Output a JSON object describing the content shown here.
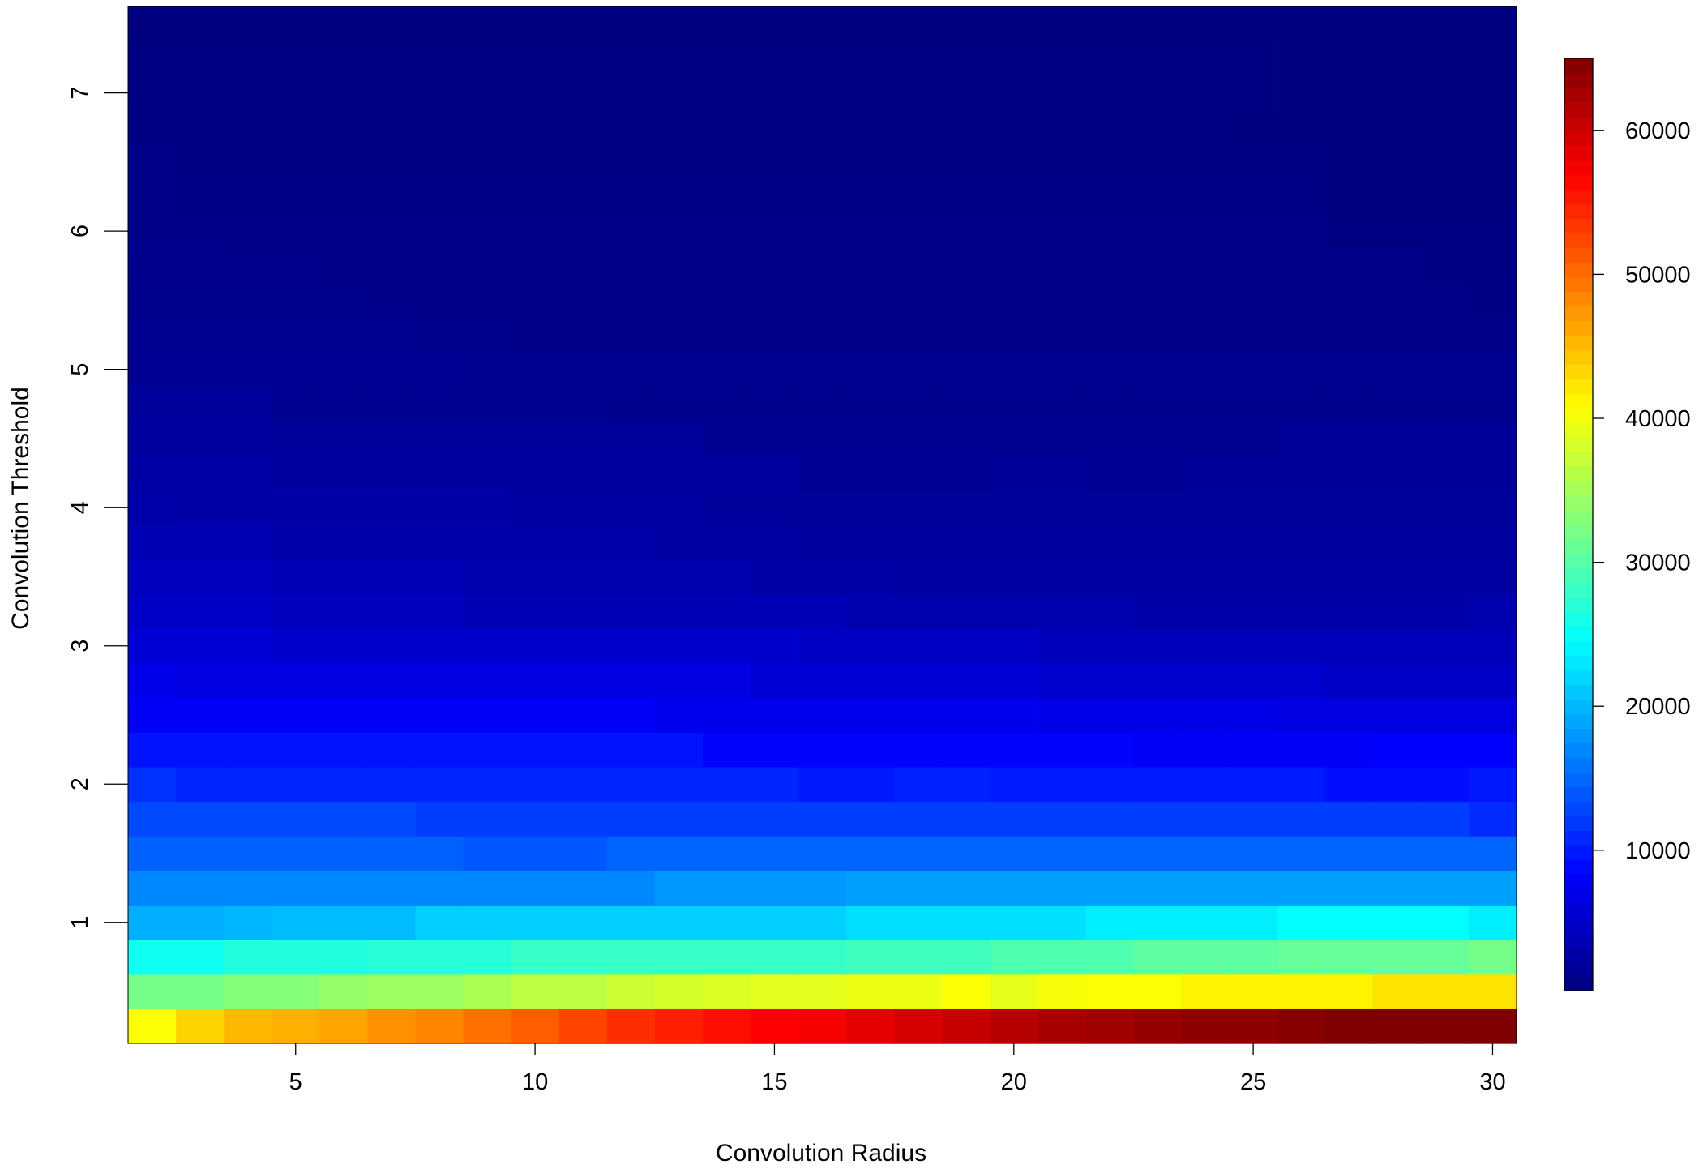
{
  "chart_data": {
    "type": "heatmap",
    "title": "",
    "xlabel": "Convolution Radius",
    "ylabel": "Convolution Threshold",
    "x_ticks": [
      5,
      10,
      15,
      20,
      25,
      30
    ],
    "y_ticks": [
      1,
      2,
      3,
      4,
      5,
      6,
      7
    ],
    "colorbar_ticks": [
      10000,
      20000,
      30000,
      40000,
      50000,
      60000
    ],
    "x_range": [
      1.5,
      30.5
    ],
    "y_range": [
      0.125,
      7.625
    ],
    "color_range": [
      250,
      65000
    ],
    "colormap": [
      "#00007F",
      "#0000FF",
      "#007FFF",
      "#00FFFF",
      "#7FFF7F",
      "#FFFF00",
      "#FF7F00",
      "#FF0000",
      "#7F0000"
    ],
    "x": [
      2,
      3,
      4,
      5,
      6,
      7,
      8,
      9,
      10,
      11,
      12,
      13,
      14,
      15,
      16,
      17,
      18,
      19,
      20,
      21,
      22,
      23,
      24,
      25,
      26,
      27,
      28,
      29,
      30
    ],
    "y_start": 0.25,
    "y_step": 0.25,
    "rows": [
      [
        40500,
        43500,
        45200,
        45800,
        46500,
        47700,
        48500,
        49800,
        51000,
        52500,
        54000,
        55000,
        56000,
        57000,
        57500,
        58500,
        59500,
        60500,
        61500,
        62500,
        63000,
        63500,
        64000,
        64000,
        64500,
        65000,
        65000,
        65000,
        65000
      ],
      [
        32000,
        32000,
        33000,
        33000,
        34000,
        34500,
        34500,
        35500,
        36500,
        36500,
        37500,
        38000,
        38500,
        39000,
        39000,
        39500,
        39500,
        40500,
        39200,
        40200,
        40500,
        40500,
        41500,
        41500,
        41500,
        41500,
        42500,
        42500,
        42500
      ],
      [
        25500,
        25500,
        26500,
        26500,
        26500,
        27000,
        27000,
        27000,
        28000,
        28000,
        28000,
        28000,
        28000,
        28000,
        28000,
        28500,
        28500,
        28500,
        29500,
        29500,
        29500,
        30500,
        30500,
        30500,
        31000,
        31000,
        31000,
        31000,
        32000
      ],
      [
        19500,
        19500,
        20000,
        20300,
        20300,
        20300,
        21500,
        21500,
        21500,
        21500,
        21500,
        21500,
        21500,
        21500,
        21500,
        22500,
        22500,
        22500,
        22500,
        22500,
        23500,
        23500,
        23500,
        23500,
        24500,
        24500,
        24500,
        24500,
        23500
      ],
      [
        17000,
        17000,
        17000,
        17000,
        17000,
        17000,
        17000,
        17000,
        17000,
        17000,
        17000,
        18000,
        18000,
        18000,
        18000,
        18500,
        18500,
        18500,
        18500,
        18500,
        18500,
        18500,
        18500,
        18500,
        18500,
        18500,
        18500,
        18500,
        18500
      ],
      [
        14500,
        14500,
        14500,
        14500,
        14500,
        14500,
        14500,
        13800,
        13800,
        13800,
        14800,
        14800,
        14800,
        14800,
        14800,
        14800,
        14800,
        14800,
        14800,
        14800,
        14800,
        14800,
        14800,
        14800,
        14800,
        14800,
        14800,
        14800,
        14800
      ],
      [
        13000,
        13000,
        13000,
        13000,
        13000,
        13000,
        12300,
        12300,
        12300,
        12300,
        12300,
        12300,
        12300,
        12300,
        12300,
        12300,
        12300,
        12300,
        12300,
        12300,
        12300,
        12300,
        12300,
        12300,
        12300,
        12300,
        12300,
        12300,
        11000
      ],
      [
        11500,
        10700,
        10700,
        10700,
        10700,
        10700,
        10700,
        10700,
        10700,
        10700,
        10700,
        10700,
        10700,
        10700,
        9900,
        9900,
        10400,
        10400,
        10000,
        10000,
        10000,
        10000,
        10000,
        10000,
        10000,
        9200,
        9200,
        9200,
        9900
      ],
      [
        9500,
        9500,
        9500,
        9500,
        9500,
        9500,
        9500,
        9500,
        9500,
        9500,
        9500,
        9500,
        8600,
        8600,
        8600,
        8600,
        8600,
        8600,
        8600,
        8600,
        8600,
        8000,
        8000,
        8000,
        8000,
        8000,
        8300,
        8300,
        8300
      ],
      [
        7800,
        7800,
        7800,
        7800,
        7800,
        7800,
        7800,
        7800,
        7800,
        7800,
        7800,
        7300,
        7300,
        7300,
        7300,
        7300,
        7300,
        7300,
        7300,
        6900,
        6900,
        6900,
        6900,
        6900,
        6400,
        6400,
        6400,
        6400,
        6400
      ],
      [
        7000,
        6500,
        6500,
        6500,
        6500,
        6500,
        6500,
        6500,
        6500,
        6500,
        6500,
        6500,
        6500,
        5700,
        5700,
        5700,
        5700,
        5700,
        5700,
        5300,
        5300,
        5300,
        5300,
        5300,
        5300,
        4800,
        4800,
        4800,
        4800
      ],
      [
        5700,
        5700,
        5700,
        5200,
        5200,
        5200,
        5200,
        5200,
        5200,
        5200,
        5200,
        5200,
        5200,
        5200,
        4600,
        4600,
        4600,
        4600,
        4600,
        4000,
        4000,
        4000,
        4000,
        4000,
        4000,
        4000,
        4000,
        4000,
        4000
      ],
      [
        4800,
        4800,
        4800,
        4200,
        4200,
        4200,
        4200,
        3700,
        3700,
        3700,
        3700,
        3700,
        3700,
        3700,
        3700,
        3300,
        3300,
        3300,
        3300,
        3300,
        3300,
        2900,
        2900,
        2900,
        2900,
        2900,
        2900,
        2900,
        3300
      ],
      [
        4200,
        4200,
        4200,
        3700,
        3700,
        3700,
        3700,
        3200,
        3200,
        3200,
        3200,
        3200,
        3200,
        2800,
        2800,
        2800,
        2400,
        2400,
        2400,
        2400,
        2400,
        2400,
        2400,
        2400,
        2400,
        2400,
        2400,
        2400,
        2400
      ],
      [
        3600,
        3600,
        3600,
        3000,
        3000,
        3000,
        3000,
        3000,
        3000,
        3000,
        3000,
        2500,
        2500,
        2500,
        2100,
        2100,
        2100,
        2100,
        2100,
        2100,
        2100,
        2100,
        2100,
        2100,
        2100,
        2100,
        2100,
        2100,
        2100
      ],
      [
        3000,
        2700,
        2700,
        2700,
        2700,
        2700,
        2700,
        2700,
        2400,
        2400,
        2400,
        2400,
        2000,
        2000,
        2000,
        2000,
        2000,
        2000,
        2000,
        2000,
        2000,
        2000,
        2000,
        2000,
        2000,
        2000,
        2000,
        2000,
        2000
      ],
      [
        2600,
        2600,
        2600,
        2300,
        2300,
        2300,
        2300,
        2300,
        2300,
        2300,
        2300,
        2300,
        2300,
        2300,
        1700,
        1700,
        1700,
        1700,
        1900,
        1900,
        1700,
        1700,
        1900,
        1900,
        1900,
        1900,
        1900,
        1900,
        1900
      ],
      [
        2300,
        2300,
        2300,
        2000,
        2000,
        2000,
        2000,
        2000,
        2000,
        2000,
        2000,
        2000,
        1500,
        1500,
        1500,
        1500,
        1500,
        1500,
        1500,
        1500,
        1500,
        1500,
        1500,
        1500,
        1800,
        1800,
        1800,
        1800,
        1800
      ],
      [
        2000,
        2000,
        2000,
        1500,
        1500,
        1500,
        1500,
        1500,
        1500,
        1500,
        1200,
        1200,
        1200,
        1200,
        1200,
        1200,
        1200,
        1200,
        1200,
        1200,
        1200,
        1200,
        1200,
        1200,
        1200,
        1200,
        1200,
        1200,
        1200
      ],
      [
        1600,
        1600,
        1600,
        1600,
        1600,
        1600,
        1600,
        1400,
        1400,
        1400,
        1400,
        1400,
        1400,
        1400,
        1400,
        1400,
        1400,
        1400,
        1400,
        1400,
        1400,
        1400,
        1400,
        1400,
        1400,
        1400,
        1400,
        1400,
        1400
      ],
      [
        1400,
        1400,
        1400,
        1400,
        1400,
        1400,
        1200,
        1200,
        900,
        900,
        900,
        900,
        900,
        900,
        900,
        900,
        900,
        900,
        900,
        900,
        900,
        900,
        900,
        900,
        900,
        900,
        900,
        900,
        900
      ],
      [
        1200,
        1200,
        1200,
        1200,
        1200,
        1000,
        1000,
        1000,
        1000,
        1000,
        1000,
        1000,
        1000,
        1000,
        1000,
        1000,
        1000,
        1000,
        1000,
        1000,
        1000,
        1000,
        1000,
        1000,
        1000,
        1000,
        800,
        800,
        600
      ],
      [
        1100,
        1100,
        1100,
        1100,
        800,
        800,
        800,
        800,
        800,
        800,
        800,
        800,
        800,
        800,
        800,
        800,
        800,
        800,
        800,
        800,
        800,
        800,
        800,
        800,
        800,
        800,
        800,
        500,
        500
      ],
      [
        1000,
        1000,
        800,
        800,
        800,
        800,
        800,
        800,
        800,
        800,
        800,
        800,
        800,
        800,
        800,
        800,
        800,
        800,
        800,
        800,
        800,
        800,
        800,
        800,
        800,
        500,
        500,
        500,
        500
      ],
      [
        900,
        700,
        700,
        700,
        700,
        700,
        700,
        700,
        700,
        700,
        700,
        700,
        700,
        700,
        700,
        700,
        700,
        700,
        700,
        700,
        700,
        700,
        700,
        700,
        700,
        400,
        400,
        400,
        400
      ],
      [
        800,
        600,
        600,
        600,
        600,
        600,
        600,
        600,
        600,
        600,
        600,
        600,
        600,
        600,
        600,
        600,
        600,
        600,
        600,
        600,
        600,
        600,
        600,
        600,
        600,
        350,
        350,
        350,
        350
      ],
      [
        600,
        600,
        600,
        600,
        600,
        600,
        600,
        600,
        600,
        600,
        600,
        600,
        600,
        600,
        600,
        600,
        600,
        600,
        600,
        600,
        600,
        600,
        600,
        300,
        300,
        300,
        300,
        300,
        300
      ],
      [
        500,
        500,
        500,
        500,
        500,
        500,
        500,
        500,
        500,
        500,
        500,
        500,
        500,
        500,
        500,
        500,
        500,
        500,
        500,
        500,
        500,
        500,
        500,
        500,
        250,
        250,
        250,
        250,
        250
      ],
      [
        500,
        500,
        500,
        500,
        500,
        500,
        500,
        500,
        500,
        500,
        500,
        500,
        500,
        500,
        500,
        500,
        500,
        500,
        500,
        500,
        500,
        500,
        500,
        500,
        250,
        250,
        250,
        250,
        250
      ],
      [
        400,
        400,
        400,
        400,
        400,
        400,
        400,
        400,
        400,
        400,
        400,
        400,
        400,
        400,
        400,
        400,
        400,
        400,
        400,
        400,
        400,
        400,
        400,
        400,
        400,
        400,
        400,
        400,
        400
      ]
    ]
  }
}
